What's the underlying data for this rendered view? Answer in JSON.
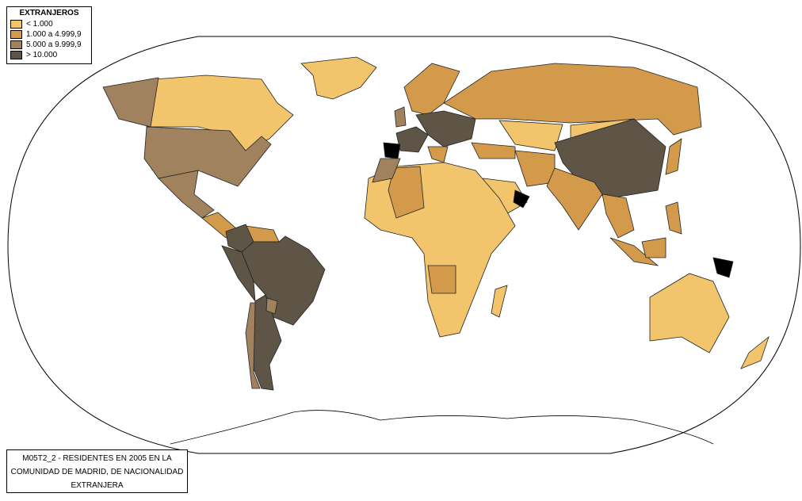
{
  "legend": {
    "title": "EXTRANJEROS",
    "items": [
      {
        "label": "< 1.000",
        "color": "#f2c46c"
      },
      {
        "label": "1.000 a 4.999,9",
        "color": "#d49a4c"
      },
      {
        "label": "5.000 a 9.999,9",
        "color": "#a0825f"
      },
      {
        "label": "> 10.000",
        "color": "#5e5546"
      }
    ]
  },
  "caption": {
    "lines": [
      "M05T2_2 - RESIDENTES EN 2005 EN LA",
      "COMUNIDAD DE MADRID, DE NACIONALIDAD",
      "EXTRANJERA"
    ]
  }
}
